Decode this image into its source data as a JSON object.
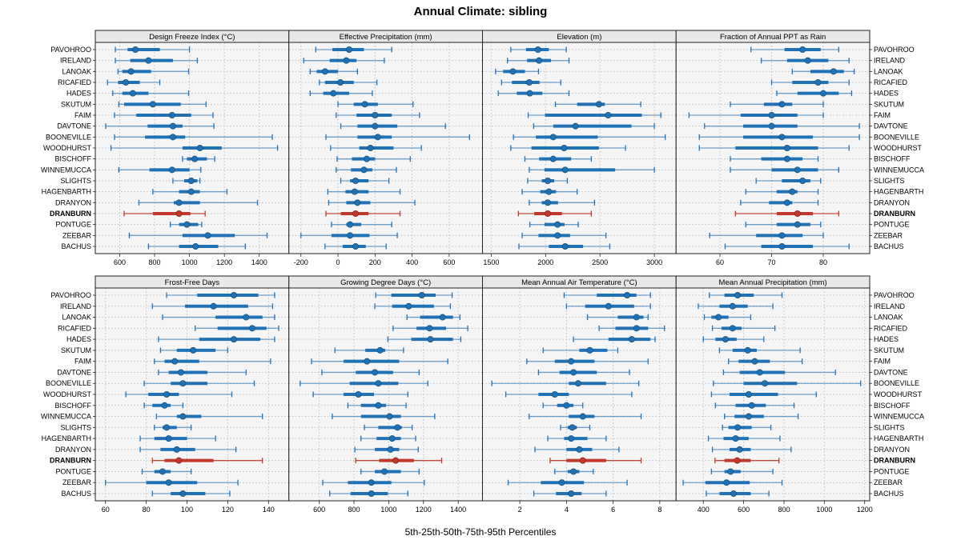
{
  "chart_data": {
    "type": "dotplot-percentiles",
    "title": "Annual Climate: sibling",
    "xlabel": "5th-25th-50th-75th-95th Percentiles",
    "legend_position": "none",
    "grid": "dotted",
    "colors": {
      "series_blue": "#2171b5",
      "highlight_red": "#c0392b",
      "panel_bg": "#f5f5f5",
      "strip_bg": "#e8e8e8",
      "border": "#222222",
      "gridline": "#bdbdbd"
    },
    "stations": [
      "PAVOHROO",
      "IRELAND",
      "LANOAK",
      "RICAFIED",
      "HADES",
      "SKUTUM",
      "FAIM",
      "DAVTONE",
      "BOONEVILLE",
      "WOODHURST",
      "BISCHOFF",
      "WINNEMUCCA",
      "SLIGHTS",
      "HAGENBARTH",
      "DRANYON",
      "DRANBURN",
      "PONTUGE",
      "ZEEBAR",
      "BACHUS"
    ],
    "highlight_station": "DRANBURN",
    "percentiles": [
      5,
      25,
      50,
      75,
      95
    ],
    "panels": [
      {
        "label": "Design Freeze Index (°C)",
        "xlim": [
          460,
          1570
        ],
        "ticks": [
          600,
          800,
          1000,
          1200,
          1400
        ],
        "values": [
          [
            575,
            645,
            690,
            830,
            1000
          ],
          [
            575,
            660,
            765,
            905,
            1045
          ],
          [
            590,
            615,
            665,
            780,
            995
          ],
          [
            530,
            590,
            635,
            715,
            830
          ],
          [
            560,
            615,
            675,
            765,
            995
          ],
          [
            595,
            625,
            790,
            950,
            1095
          ],
          [
            570,
            695,
            900,
            1010,
            1135
          ],
          [
            520,
            760,
            905,
            960,
            1140
          ],
          [
            570,
            745,
            905,
            975,
            1475
          ],
          [
            550,
            960,
            1060,
            1185,
            1505
          ],
          [
            960,
            985,
            1030,
            1100,
            1145
          ],
          [
            595,
            770,
            900,
            1000,
            1065
          ],
          [
            905,
            970,
            1010,
            1045,
            1060
          ],
          [
            790,
            940,
            1010,
            1060,
            1215
          ],
          [
            710,
            910,
            940,
            1060,
            1390
          ],
          [
            625,
            790,
            940,
            1005,
            1090
          ],
          [
            890,
            940,
            985,
            1050,
            1070
          ],
          [
            655,
            960,
            1105,
            1260,
            1445
          ],
          [
            765,
            940,
            1035,
            1165,
            1320
          ]
        ]
      },
      {
        "label": "Effective Precipitation (mm)",
        "xlim": [
          -265,
          780
        ],
        "ticks": [
          -200,
          0,
          200,
          400,
          600
        ],
        "values": [
          [
            -120,
            -30,
            60,
            140,
            290
          ],
          [
            -185,
            -45,
            45,
            100,
            250
          ],
          [
            -150,
            -115,
            -70,
            0,
            105
          ],
          [
            -100,
            -70,
            13,
            85,
            210
          ],
          [
            -150,
            -80,
            -25,
            60,
            185
          ],
          [
            0,
            85,
            145,
            215,
            405
          ],
          [
            -10,
            100,
            200,
            290,
            440
          ],
          [
            15,
            105,
            200,
            320,
            580
          ],
          [
            -65,
            105,
            215,
            290,
            710
          ],
          [
            -40,
            115,
            175,
            300,
            450
          ],
          [
            -5,
            75,
            155,
            200,
            390
          ],
          [
            -10,
            70,
            140,
            185,
            315
          ],
          [
            15,
            65,
            95,
            165,
            275
          ],
          [
            -55,
            40,
            90,
            165,
            335
          ],
          [
            -50,
            45,
            105,
            175,
            415
          ],
          [
            -65,
            15,
            95,
            165,
            335
          ],
          [
            -35,
            45,
            65,
            125,
            290
          ],
          [
            -200,
            -35,
            65,
            170,
            320
          ],
          [
            -70,
            25,
            95,
            150,
            260
          ]
        ]
      },
      {
        "label": "Elevation (m)",
        "xlim": [
          1420,
          3200
        ],
        "ticks": [
          1500,
          2000,
          2500,
          3000
        ],
        "values": [
          [
            1680,
            1820,
            1930,
            2030,
            2190
          ],
          [
            1650,
            1830,
            1940,
            2050,
            2215
          ],
          [
            1540,
            1610,
            1700,
            1810,
            1935
          ],
          [
            1595,
            1690,
            1850,
            1945,
            2140
          ],
          [
            1565,
            1735,
            1855,
            1970,
            2215
          ],
          [
            2090,
            2290,
            2490,
            2545,
            2875
          ],
          [
            1840,
            1995,
            2575,
            2885,
            3060
          ],
          [
            1890,
            2070,
            2275,
            2790,
            3000
          ],
          [
            1705,
            1910,
            2070,
            2480,
            3100
          ],
          [
            1680,
            1870,
            2170,
            2490,
            2735
          ],
          [
            1810,
            1940,
            2070,
            2235,
            2420
          ],
          [
            1850,
            1990,
            2180,
            2640,
            3000
          ],
          [
            1835,
            1965,
            2020,
            2080,
            2200
          ],
          [
            1785,
            1950,
            2030,
            2095,
            2290
          ],
          [
            1850,
            1965,
            2020,
            2115,
            2450
          ],
          [
            1750,
            1895,
            2020,
            2150,
            2420
          ],
          [
            1855,
            1990,
            2110,
            2175,
            2300
          ],
          [
            1785,
            1935,
            2110,
            2225,
            2555
          ],
          [
            1755,
            2030,
            2180,
            2345,
            2590
          ]
        ]
      },
      {
        "label": "Fraction of Annual PPT as Rain",
        "xlim": [
          51.5,
          89
        ],
        "ticks": [
          60,
          70,
          80
        ],
        "values": [
          [
            66,
            72.5,
            76,
            79.5,
            83
          ],
          [
            68,
            73,
            77,
            81,
            85
          ],
          [
            74,
            77.5,
            82,
            84,
            86
          ],
          [
            70,
            74,
            79,
            81,
            85
          ],
          [
            71,
            75,
            80,
            83,
            85.5
          ],
          [
            62,
            68.5,
            72,
            74,
            80
          ],
          [
            54,
            64,
            70,
            75,
            80
          ],
          [
            57,
            64.5,
            70,
            75,
            87
          ],
          [
            56,
            64.5,
            72,
            78,
            87
          ],
          [
            56,
            63,
            73,
            79,
            85
          ],
          [
            62,
            68,
            73,
            76,
            79
          ],
          [
            62,
            70,
            75,
            79,
            83
          ],
          [
            67,
            72,
            76,
            77.5,
            79.5
          ],
          [
            65,
            71,
            74,
            75,
            79
          ],
          [
            64,
            69.5,
            73,
            74,
            79
          ],
          [
            63,
            71,
            75,
            78,
            83
          ],
          [
            65,
            71,
            75,
            77.5,
            79.5
          ],
          [
            58,
            67,
            72,
            76,
            80
          ],
          [
            61,
            68,
            72,
            78,
            85
          ]
        ]
      },
      {
        "label": "Frost-Free Days",
        "xlim": [
          55,
          150
        ],
        "ticks": [
          60,
          80,
          100,
          120,
          140
        ],
        "values": [
          [
            90,
            105,
            123,
            135,
            143
          ],
          [
            83,
            99,
            113,
            130,
            142
          ],
          [
            88,
            114,
            129,
            137,
            143
          ],
          [
            104,
            115,
            132,
            139,
            145
          ],
          [
            86,
            106,
            123,
            136,
            143
          ],
          [
            87,
            95,
            103,
            114,
            120
          ],
          [
            84,
            89,
            94,
            106,
            141
          ],
          [
            86,
            91,
            97,
            110,
            129
          ],
          [
            79,
            92,
            98,
            110,
            133
          ],
          [
            70,
            81,
            90,
            96,
            122
          ],
          [
            79,
            83,
            89,
            92,
            98
          ],
          [
            85,
            95,
            98,
            107,
            137
          ],
          [
            84,
            88,
            90,
            95,
            102
          ],
          [
            77,
            84,
            91,
            100,
            114
          ],
          [
            77,
            87,
            95,
            104,
            124
          ],
          [
            83,
            89,
            96,
            113,
            137
          ],
          [
            78,
            84,
            88,
            92,
            102
          ],
          [
            60,
            80,
            91,
            105,
            125
          ],
          [
            83,
            92,
            98,
            109,
            121
          ]
        ]
      },
      {
        "label": "Growing Degree Days (°C)",
        "xlim": [
          425,
          1540
        ],
        "ticks": [
          600,
          800,
          1000,
          1200,
          1400
        ],
        "values": [
          [
            925,
            1015,
            1190,
            1270,
            1365
          ],
          [
            920,
            1020,
            1115,
            1260,
            1355
          ],
          [
            1105,
            1180,
            1310,
            1370,
            1410
          ],
          [
            1025,
            1160,
            1235,
            1330,
            1455
          ],
          [
            995,
            1130,
            1240,
            1370,
            1415
          ],
          [
            690,
            865,
            950,
            980,
            1085
          ],
          [
            555,
            740,
            875,
            1060,
            1340
          ],
          [
            615,
            810,
            920,
            1025,
            1175
          ],
          [
            490,
            775,
            940,
            1055,
            1225
          ],
          [
            565,
            740,
            825,
            915,
            1110
          ],
          [
            765,
            840,
            940,
            985,
            1100
          ],
          [
            675,
            840,
            1005,
            1070,
            1265
          ],
          [
            860,
            940,
            1050,
            1075,
            1135
          ],
          [
            840,
            930,
            1020,
            1070,
            1155
          ],
          [
            805,
            920,
            1010,
            1060,
            1170
          ],
          [
            810,
            945,
            1040,
            1145,
            1305
          ],
          [
            840,
            920,
            975,
            1070,
            1175
          ],
          [
            620,
            765,
            900,
            1015,
            1205
          ],
          [
            660,
            780,
            900,
            995,
            1110
          ]
        ]
      },
      {
        "label": "Mean Annual Air Temperature (°C)",
        "xlim": [
          0.4,
          8.7
        ],
        "ticks": [
          2,
          4,
          6,
          8
        ],
        "values": [
          [
            3.9,
            5.3,
            6.6,
            7.0,
            7.6
          ],
          [
            4.0,
            4.8,
            5.8,
            6.9,
            7.6
          ],
          [
            4.9,
            6.2,
            7.0,
            7.3,
            7.5
          ],
          [
            5.4,
            6.1,
            7.0,
            7.5,
            8.2
          ],
          [
            4.3,
            5.8,
            6.8,
            7.6,
            7.8
          ],
          [
            3.0,
            4.55,
            5.0,
            5.75,
            6.2
          ],
          [
            2.3,
            3.5,
            4.2,
            5.2,
            7.5
          ],
          [
            2.8,
            3.7,
            4.3,
            5.3,
            6.7
          ],
          [
            0.8,
            4.1,
            4.5,
            5.7,
            7.1
          ],
          [
            1.4,
            2.8,
            3.5,
            4.1,
            6.8
          ],
          [
            3.0,
            3.6,
            4.0,
            4.3,
            4.7
          ],
          [
            2.4,
            4.1,
            4.7,
            5.2,
            7.2
          ],
          [
            3.75,
            4.05,
            4.25,
            4.45,
            5.0
          ],
          [
            3.2,
            3.9,
            4.2,
            4.9,
            5.7
          ],
          [
            2.65,
            4.0,
            4.55,
            5.1,
            6.25
          ],
          [
            3.3,
            4.0,
            4.7,
            5.7,
            7.2
          ],
          [
            3.5,
            4.05,
            4.3,
            4.55,
            5.15
          ],
          [
            1.5,
            2.9,
            3.8,
            4.75,
            6.6
          ],
          [
            2.6,
            3.55,
            4.2,
            4.65,
            5.7
          ]
        ]
      },
      {
        "label": "Mean Annual Precipitation (mm)",
        "xlim": [
          265,
          1225
        ],
        "ticks": [
          400,
          600,
          800,
          1000,
          1200
        ],
        "values": [
          [
            430,
            505,
            570,
            650,
            790
          ],
          [
            375,
            480,
            545,
            620,
            745
          ],
          [
            405,
            440,
            475,
            525,
            635
          ],
          [
            445,
            490,
            545,
            590,
            755
          ],
          [
            400,
            460,
            510,
            565,
            700
          ],
          [
            480,
            545,
            620,
            665,
            880
          ],
          [
            525,
            575,
            655,
            730,
            890
          ],
          [
            500,
            580,
            680,
            805,
            1055
          ],
          [
            450,
            600,
            705,
            865,
            1180
          ],
          [
            440,
            530,
            625,
            770,
            960
          ],
          [
            460,
            560,
            640,
            710,
            850
          ],
          [
            505,
            555,
            625,
            700,
            870
          ],
          [
            495,
            525,
            570,
            640,
            735
          ],
          [
            425,
            500,
            560,
            625,
            780
          ],
          [
            445,
            530,
            580,
            635,
            835
          ],
          [
            458,
            505,
            568,
            635,
            775
          ],
          [
            440,
            505,
            535,
            585,
            745
          ],
          [
            300,
            410,
            515,
            630,
            790
          ],
          [
            415,
            480,
            550,
            635,
            725
          ]
        ]
      }
    ]
  }
}
